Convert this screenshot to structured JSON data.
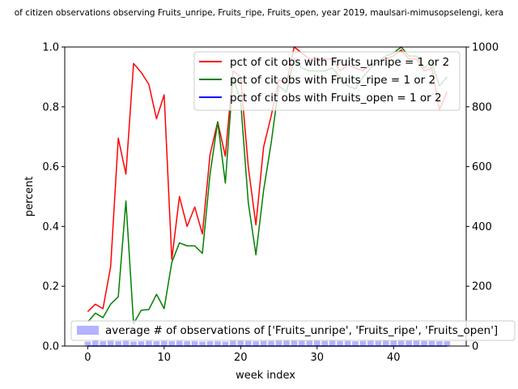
{
  "chart_data": {
    "type": "line",
    "title": "of citizen observations observing Fruits_unripe, Fruits_ripe, Fruits_open, year 2019, maulsari-mimusopselengi, kera",
    "xlabel": "week index",
    "ylabel": "percent",
    "xlim": [
      -3,
      49.5
    ],
    "ylim": [
      0,
      1.0
    ],
    "y2lim": [
      0,
      1000
    ],
    "x_ticks": [
      0,
      10,
      20,
      30,
      40
    ],
    "y_ticks": [
      0.0,
      0.2,
      0.4,
      0.6,
      0.8,
      1.0
    ],
    "y_tick_labels": [
      "0.0",
      "0.2",
      "0.4",
      "0.6",
      "0.8",
      "1.0"
    ],
    "y2_ticks": [
      0,
      200,
      400,
      600,
      800,
      1000
    ],
    "y2_tick_labels": [
      "0",
      "200",
      "400",
      "600",
      "800",
      "1000"
    ],
    "legend_position": "top-right",
    "bar_legend_position": "lower-center",
    "x": [
      0,
      1,
      2,
      3,
      4,
      5,
      6,
      7,
      8,
      9,
      10,
      11,
      12,
      13,
      14,
      15,
      16,
      17,
      18,
      19,
      20,
      21,
      22,
      23,
      24,
      25,
      26,
      27,
      28,
      29,
      30,
      31,
      32,
      33,
      34,
      35,
      36,
      37,
      38,
      39,
      40,
      41,
      42,
      43,
      44,
      45,
      46,
      47
    ],
    "series": [
      {
        "name": "pct of cit obs with Fruits_unripe = 1 or 2",
        "color": "#ff0000",
        "axis": "left",
        "values": [
          0.115,
          0.14,
          0.125,
          0.265,
          0.695,
          0.575,
          0.945,
          0.915,
          0.875,
          0.76,
          0.84,
          0.29,
          0.5,
          0.4,
          0.465,
          0.375,
          0.64,
          0.75,
          0.635,
          0.92,
          0.9,
          0.6,
          0.405,
          0.665,
          0.77,
          0.89,
          0.88,
          1.0,
          0.98,
          0.96,
          0.96,
          0.96,
          0.96,
          0.92,
          0.94,
          0.93,
          0.92,
          0.94,
          0.95,
          0.96,
          0.97,
          0.99,
          0.96,
          0.96,
          0.92,
          0.93,
          0.79,
          0.85
        ]
      },
      {
        "name": "pct of cit obs with Fruits_ripe = 1 or 2",
        "color": "#008000",
        "axis": "left",
        "values": [
          0.08,
          0.11,
          0.095,
          0.14,
          0.165,
          0.485,
          0.075,
          0.12,
          0.122,
          0.173,
          0.125,
          0.28,
          0.345,
          0.335,
          0.335,
          0.31,
          0.575,
          0.75,
          0.545,
          0.9,
          0.82,
          0.48,
          0.305,
          0.52,
          0.68,
          0.87,
          0.85,
          0.96,
          0.93,
          0.92,
          0.92,
          0.92,
          0.93,
          0.9,
          0.87,
          0.86,
          0.9,
          0.93,
          0.95,
          0.97,
          0.98,
          1.0,
          0.97,
          0.97,
          0.93,
          0.95,
          0.87,
          0.9
        ]
      },
      {
        "name": "pct of cit obs with Fruits_open = 1 or 2",
        "color": "#0000ff",
        "axis": "left",
        "values": [
          0,
          0,
          0,
          0,
          0,
          0,
          0,
          0,
          0,
          0,
          0,
          0,
          0,
          0,
          0,
          0,
          0,
          0,
          0,
          0,
          0,
          0,
          0,
          0,
          0,
          0,
          0,
          0,
          0,
          0,
          0,
          0,
          0,
          0,
          0,
          0,
          0,
          0,
          0,
          0,
          0,
          0,
          0,
          0,
          0,
          0,
          0,
          0
        ]
      }
    ],
    "bars": {
      "name": "average # of observations of ['Fruits_unripe', 'Fruits_ripe', 'Fruits_open']",
      "color": "#b3b3ff",
      "axis": "right",
      "values": [
        15,
        18,
        16,
        17,
        16,
        17,
        15,
        16,
        17,
        16,
        17,
        16,
        17,
        16,
        16,
        15,
        16,
        16,
        15,
        18,
        18,
        17,
        16,
        17,
        17,
        18,
        18,
        19,
        19,
        18,
        18,
        17,
        18,
        17,
        17,
        16,
        17,
        18,
        17,
        18,
        18,
        19,
        18,
        18,
        17,
        17,
        16,
        16
      ]
    }
  }
}
